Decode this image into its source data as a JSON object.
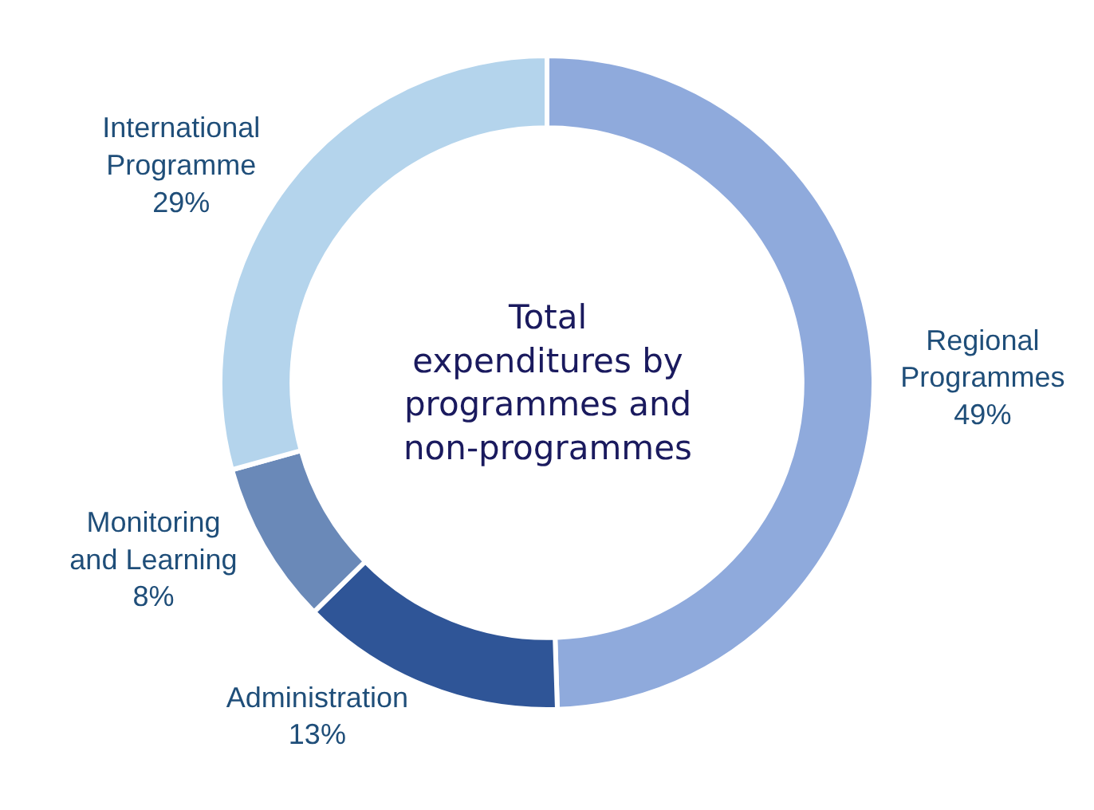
{
  "chart_data": {
    "type": "donut",
    "title": "Total expenditures by programmes and non-programmes",
    "categories": [
      "Regional Programmes",
      "Administration",
      "Monitoring and Learning",
      "International Programme"
    ],
    "values": [
      49,
      13,
      8,
      29
    ],
    "value_labels": [
      "49%",
      "13%",
      "8%",
      "29%"
    ],
    "colors": [
      "#8faadc",
      "#2f5597",
      "#6a89b8",
      "#b4d4ec"
    ],
    "legend": false
  }
}
